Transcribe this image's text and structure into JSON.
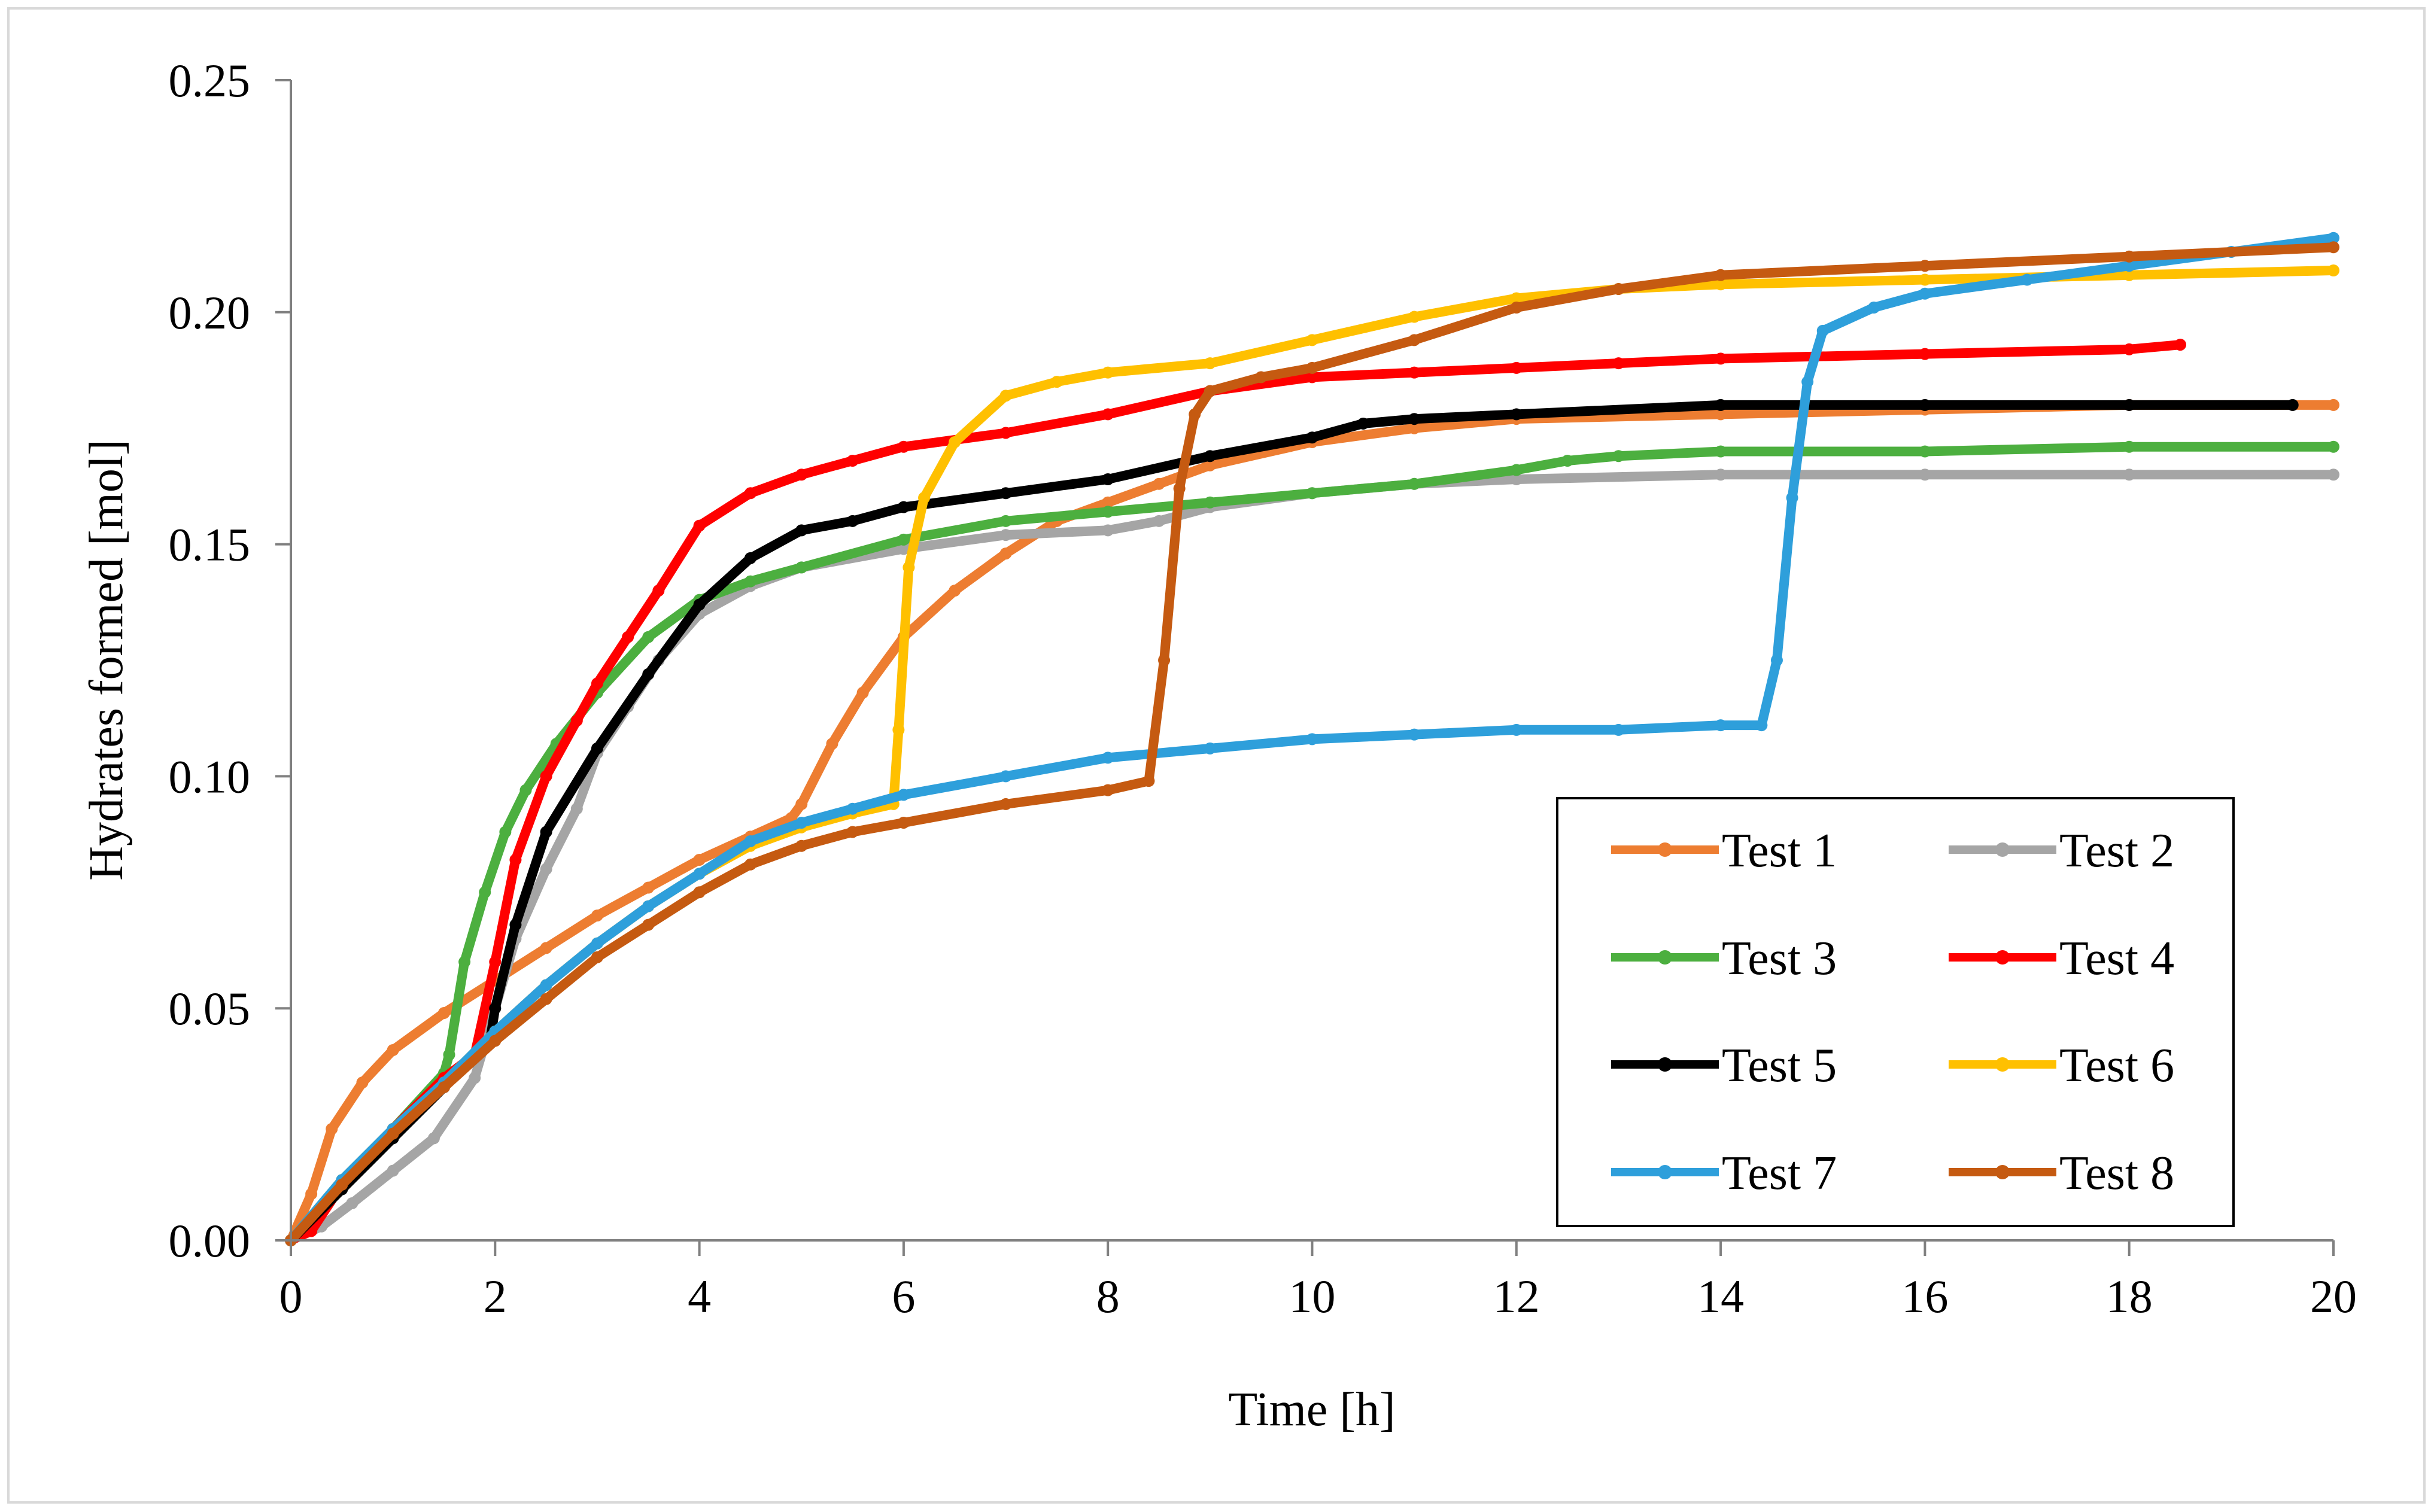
{
  "chart_data": {
    "type": "line",
    "title": "",
    "xlabel": "Time [h]",
    "ylabel": "Hydrates formed [mol]",
    "xlim": [
      0,
      20
    ],
    "ylim": [
      0,
      0.25
    ],
    "x_ticks": [
      0,
      2,
      4,
      6,
      8,
      10,
      12,
      14,
      16,
      18,
      20
    ],
    "x_tick_labels": [
      "0",
      "2",
      "4",
      "6",
      "8",
      "10",
      "12",
      "14",
      "16",
      "18",
      "20"
    ],
    "y_ticks": [
      0,
      0.05,
      0.1,
      0.15,
      0.2,
      0.25
    ],
    "y_tick_labels": [
      "0.00",
      "0.05",
      "0.10",
      "0.15",
      "0.20",
      "0.25"
    ],
    "grid": false,
    "legend_position": "bottom-right",
    "series": [
      {
        "name": "Test 1",
        "color": "#ED7D31",
        "x": [
          0,
          0.2,
          0.4,
          0.7,
          1,
          1.5,
          2,
          2.5,
          3,
          3.5,
          4,
          4.5,
          4.9,
          5.0,
          5.3,
          5.6,
          6,
          6.5,
          7,
          7.5,
          8,
          8.5,
          9,
          10,
          11,
          12,
          14,
          16,
          18,
          20
        ],
        "y": [
          0,
          0.01,
          0.024,
          0.034,
          0.041,
          0.049,
          0.056,
          0.063,
          0.07,
          0.076,
          0.082,
          0.087,
          0.091,
          0.094,
          0.107,
          0.118,
          0.13,
          0.14,
          0.148,
          0.155,
          0.159,
          0.163,
          0.167,
          0.172,
          0.175,
          0.177,
          0.178,
          0.179,
          0.18,
          0.18
        ]
      },
      {
        "name": "Test 2",
        "color": "#A5A5A5",
        "x": [
          0,
          0.3,
          0.6,
          1,
          1.4,
          1.8,
          2,
          2.2,
          2.5,
          2.8,
          3,
          3.3,
          3.6,
          4,
          4.5,
          5,
          6,
          7,
          8,
          8.5,
          9,
          10,
          11,
          12,
          14,
          16,
          18,
          20
        ],
        "y": [
          0,
          0.003,
          0.008,
          0.015,
          0.022,
          0.035,
          0.05,
          0.065,
          0.08,
          0.093,
          0.105,
          0.115,
          0.125,
          0.135,
          0.141,
          0.145,
          0.149,
          0.152,
          0.153,
          0.155,
          0.158,
          0.161,
          0.163,
          0.164,
          0.165,
          0.165,
          0.165,
          0.165
        ]
      },
      {
        "name": "Test 3",
        "color": "#4CAF3F",
        "x": [
          0,
          0.5,
          1,
          1.5,
          1.55,
          1.7,
          1.9,
          2.1,
          2.3,
          2.6,
          3,
          3.5,
          4,
          4.5,
          5,
          6,
          7,
          8,
          9,
          10,
          11,
          12,
          12.5,
          13,
          14,
          16,
          18,
          20
        ],
        "y": [
          0,
          0.012,
          0.024,
          0.036,
          0.04,
          0.06,
          0.075,
          0.088,
          0.097,
          0.107,
          0.118,
          0.13,
          0.138,
          0.142,
          0.145,
          0.151,
          0.155,
          0.157,
          0.159,
          0.161,
          0.163,
          0.166,
          0.168,
          0.169,
          0.17,
          0.17,
          0.171,
          0.171
        ]
      },
      {
        "name": "Test 4",
        "color": "#FF0000",
        "x": [
          0,
          0.2,
          0.5,
          1,
          1.5,
          1.8,
          2,
          2.2,
          2.5,
          2.8,
          3,
          3.3,
          3.6,
          4,
          4.5,
          5,
          5.5,
          6,
          7,
          8,
          9,
          10,
          11,
          12,
          13,
          14,
          16,
          18,
          18.5
        ],
        "y": [
          0,
          0.002,
          0.012,
          0.024,
          0.035,
          0.04,
          0.06,
          0.082,
          0.1,
          0.112,
          0.12,
          0.13,
          0.14,
          0.154,
          0.161,
          0.165,
          0.168,
          0.171,
          0.174,
          0.178,
          0.183,
          0.186,
          0.187,
          0.188,
          0.189,
          0.19,
          0.191,
          0.192,
          0.193
        ]
      },
      {
        "name": "Test 5",
        "color": "#000000",
        "x": [
          0,
          0.5,
          1,
          1.5,
          1.95,
          2,
          2.2,
          2.5,
          3,
          3.5,
          4,
          4.5,
          5,
          5.5,
          6,
          7,
          8,
          9,
          10,
          10.5,
          11,
          12,
          14,
          16,
          18,
          19.6
        ],
        "y": [
          0,
          0.011,
          0.022,
          0.033,
          0.043,
          0.05,
          0.068,
          0.088,
          0.106,
          0.122,
          0.137,
          0.147,
          0.153,
          0.155,
          0.158,
          0.161,
          0.164,
          0.169,
          0.173,
          0.176,
          0.177,
          0.178,
          0.18,
          0.18,
          0.18,
          0.18
        ]
      },
      {
        "name": "Test 6",
        "color": "#FFC000",
        "x": [
          0,
          0.5,
          1,
          1.5,
          2,
          2.5,
          3,
          3.5,
          4,
          4.5,
          5,
          5.5,
          5.9,
          5.95,
          6.05,
          6.2,
          6.5,
          7,
          7.5,
          8,
          9,
          10,
          11,
          12,
          13,
          14,
          16,
          18,
          20
        ],
        "y": [
          0,
          0.013,
          0.024,
          0.034,
          0.045,
          0.055,
          0.064,
          0.072,
          0.079,
          0.085,
          0.089,
          0.092,
          0.094,
          0.11,
          0.145,
          0.16,
          0.172,
          0.182,
          0.185,
          0.187,
          0.189,
          0.194,
          0.199,
          0.203,
          0.205,
          0.206,
          0.207,
          0.208,
          0.209
        ]
      },
      {
        "name": "Test 7",
        "color": "#2E9FDB",
        "x": [
          0,
          0.5,
          1,
          1.5,
          2,
          2.5,
          3,
          3.5,
          4,
          4.5,
          5,
          5.5,
          6,
          7,
          8,
          9,
          10,
          11,
          12,
          13,
          14,
          14.4,
          14.55,
          14.7,
          14.85,
          15,
          15.5,
          16,
          17,
          18,
          19,
          20
        ],
        "y": [
          0,
          0.013,
          0.024,
          0.034,
          0.045,
          0.055,
          0.064,
          0.072,
          0.079,
          0.086,
          0.09,
          0.093,
          0.096,
          0.1,
          0.104,
          0.106,
          0.108,
          0.109,
          0.11,
          0.11,
          0.111,
          0.111,
          0.125,
          0.16,
          0.185,
          0.196,
          0.201,
          0.204,
          0.207,
          0.21,
          0.213,
          0.216
        ]
      },
      {
        "name": "Test 8",
        "color": "#C55A11",
        "x": [
          0,
          0.5,
          1,
          1.5,
          2,
          2.5,
          3,
          3.5,
          4,
          4.5,
          5,
          5.5,
          6,
          7,
          8,
          8.4,
          8.55,
          8.7,
          8.85,
          9,
          9.5,
          10,
          11,
          12,
          13,
          14,
          16,
          18,
          20
        ],
        "y": [
          0,
          0.012,
          0.023,
          0.033,
          0.043,
          0.052,
          0.061,
          0.068,
          0.075,
          0.081,
          0.085,
          0.088,
          0.09,
          0.094,
          0.097,
          0.099,
          0.125,
          0.162,
          0.178,
          0.183,
          0.186,
          0.188,
          0.194,
          0.201,
          0.205,
          0.208,
          0.21,
          0.212,
          0.214
        ]
      }
    ]
  }
}
